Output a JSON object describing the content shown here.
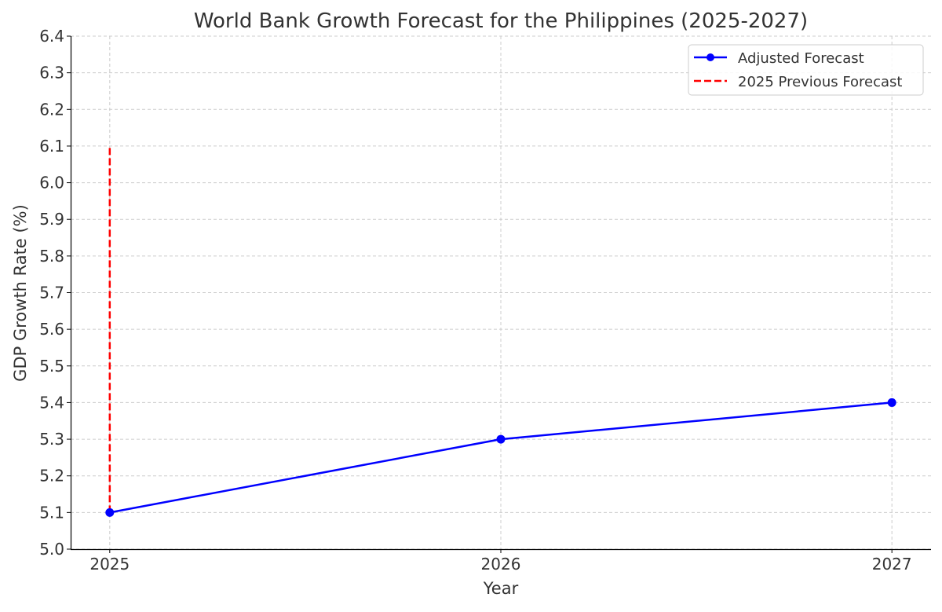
{
  "chart_data": {
    "type": "line",
    "title": "World Bank Growth Forecast for the Philippines (2025-2027)",
    "xlabel": "Year",
    "ylabel": "GDP Growth Rate (%)",
    "xlim": [
      2024.9,
      2027.1
    ],
    "ylim": [
      5.0,
      6.4
    ],
    "x_ticks": [
      "2025",
      "2026",
      "2027"
    ],
    "y_ticks": [
      "5.0",
      "5.1",
      "5.2",
      "5.3",
      "5.4",
      "5.5",
      "5.6",
      "5.7",
      "5.8",
      "5.9",
      "6.0",
      "6.1",
      "6.2",
      "6.3",
      "6.4"
    ],
    "grid": true,
    "legend_position": "top-right",
    "series": [
      {
        "name": "Adjusted Forecast",
        "style": "solid-with-markers",
        "color": "#0000ff",
        "x": [
          2025,
          2026,
          2027
        ],
        "y": [
          5.1,
          5.3,
          5.4
        ]
      },
      {
        "name": "2025 Previous Forecast",
        "style": "dashed-vertical",
        "color": "#ff0000",
        "x": [
          2025,
          2025
        ],
        "y": [
          5.1,
          6.1
        ]
      }
    ]
  }
}
